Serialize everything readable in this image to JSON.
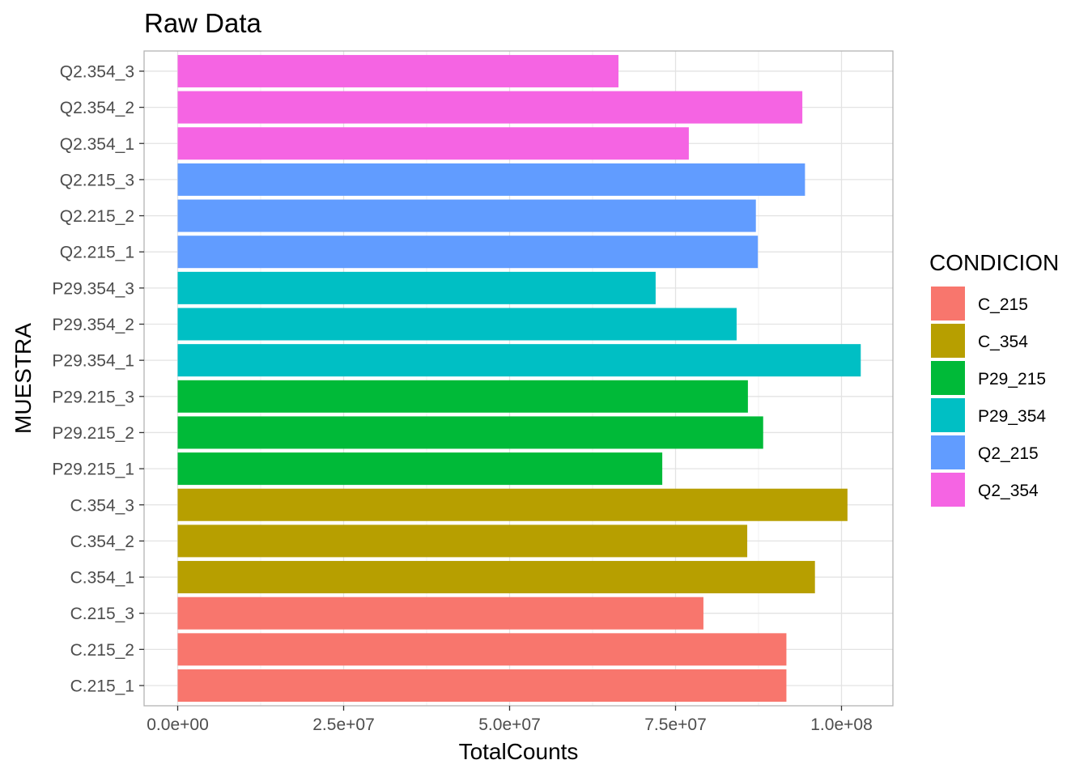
{
  "chart_data": {
    "type": "bar",
    "orientation": "horizontal",
    "title": "Raw Data",
    "xlabel": "TotalCounts",
    "ylabel": "MUESTRA",
    "xlim": [
      -10000000,
      108000000
    ],
    "x_ticks": [
      {
        "value": 0,
        "label": "0.0e+00"
      },
      {
        "value": 25000000,
        "label": "2.5e+07"
      },
      {
        "value": 50000000,
        "label": "5.0e+07"
      },
      {
        "value": 75000000,
        "label": "7.5e+07"
      },
      {
        "value": 100000000,
        "label": "1.0e+08"
      }
    ],
    "grid": true,
    "legend": {
      "title": "CONDICION",
      "position": "right",
      "entries": [
        {
          "name": "C_215",
          "color": "#F8766D"
        },
        {
          "name": "C_354",
          "color": "#B79F00"
        },
        {
          "name": "P29_215",
          "color": "#00BA38"
        },
        {
          "name": "P29_354",
          "color": "#00BFC4"
        },
        {
          "name": "Q2_215",
          "color": "#619CFF"
        },
        {
          "name": "Q2_354",
          "color": "#F564E3"
        }
      ]
    },
    "categories": [
      "C.215_1",
      "C.215_2",
      "C.215_3",
      "C.354_1",
      "C.354_2",
      "C.354_3",
      "P29.215_1",
      "P29.215_2",
      "P29.215_3",
      "P29.354_1",
      "P29.354_2",
      "P29.354_3",
      "Q2.215_1",
      "Q2.215_2",
      "Q2.215_3",
      "Q2.354_1",
      "Q2.354_2",
      "Q2.354_3"
    ],
    "values": [
      91700000,
      91700000,
      79200000,
      96000000,
      85800000,
      100900000,
      73000000,
      88200000,
      85900000,
      102900000,
      84200000,
      72000000,
      87400000,
      87100000,
      94500000,
      77000000,
      94100000,
      66400000
    ],
    "groups": [
      "C_215",
      "C_215",
      "C_215",
      "C_354",
      "C_354",
      "C_354",
      "P29_215",
      "P29_215",
      "P29_215",
      "P29_354",
      "P29_354",
      "P29_354",
      "Q2_215",
      "Q2_215",
      "Q2_215",
      "Q2_354",
      "Q2_354",
      "Q2_354"
    ]
  }
}
